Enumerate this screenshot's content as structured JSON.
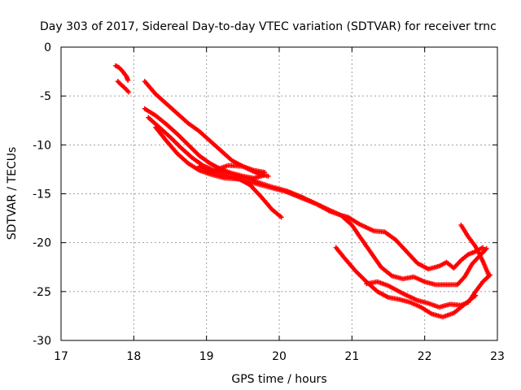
{
  "chart_data": {
    "type": "scatter",
    "title": "Day 303 of 2017, Sidereal Day-to-day VTEC variation (SDTVAR) for receiver trnc",
    "xlabel": "GPS time / hours",
    "ylabel": "SDTVAR / TECUs",
    "xlim": [
      17,
      23
    ],
    "ylim": [
      -30,
      0
    ],
    "xticks": [
      17,
      18,
      19,
      20,
      21,
      22,
      23
    ],
    "yticks": [
      0,
      -5,
      -10,
      -15,
      -20,
      -25,
      -30
    ],
    "grid": true,
    "marker": "plus",
    "color": "#ff0000",
    "series": [
      {
        "name": "s1",
        "values": [
          [
            17.75,
            -1.9
          ],
          [
            17.8,
            -2.1
          ],
          [
            17.85,
            -2.5
          ],
          [
            17.9,
            -3.0
          ],
          [
            17.92,
            -3.4
          ]
        ]
      },
      {
        "name": "s2",
        "values": [
          [
            17.78,
            -3.5
          ],
          [
            17.82,
            -3.8
          ],
          [
            17.88,
            -4.2
          ],
          [
            17.93,
            -4.6
          ]
        ]
      },
      {
        "name": "s3",
        "values": [
          [
            18.15,
            -3.5
          ],
          [
            18.3,
            -4.8
          ],
          [
            18.45,
            -5.8
          ],
          [
            18.6,
            -6.8
          ],
          [
            18.75,
            -7.8
          ],
          [
            18.9,
            -8.6
          ],
          [
            19.05,
            -9.6
          ],
          [
            19.2,
            -10.6
          ],
          [
            19.35,
            -11.6
          ],
          [
            19.5,
            -12.2
          ],
          [
            19.65,
            -12.6
          ],
          [
            19.8,
            -12.8
          ]
        ]
      },
      {
        "name": "s4",
        "values": [
          [
            18.15,
            -6.3
          ],
          [
            18.3,
            -7.0
          ],
          [
            18.45,
            -7.9
          ],
          [
            18.6,
            -8.9
          ],
          [
            18.75,
            -10.0
          ],
          [
            18.9,
            -11.1
          ],
          [
            19.05,
            -11.9
          ],
          [
            19.2,
            -12.5
          ],
          [
            19.35,
            -12.9
          ],
          [
            19.5,
            -13.2
          ],
          [
            19.65,
            -13.4
          ],
          [
            19.8,
            -13.1
          ]
        ]
      },
      {
        "name": "s5",
        "values": [
          [
            18.2,
            -7.2
          ],
          [
            18.35,
            -8.2
          ],
          [
            18.5,
            -9.2
          ],
          [
            18.65,
            -10.3
          ],
          [
            18.8,
            -11.3
          ],
          [
            18.95,
            -12.1
          ],
          [
            19.1,
            -12.6
          ],
          [
            19.3,
            -12.1
          ],
          [
            19.5,
            -12.2
          ],
          [
            19.7,
            -12.9
          ],
          [
            19.85,
            -13.2
          ]
        ]
      },
      {
        "name": "s6",
        "values": [
          [
            18.3,
            -8.2
          ],
          [
            18.45,
            -9.6
          ],
          [
            18.6,
            -10.9
          ],
          [
            18.75,
            -11.9
          ],
          [
            18.9,
            -12.6
          ],
          [
            19.05,
            -13.0
          ],
          [
            19.25,
            -13.4
          ],
          [
            19.45,
            -13.5
          ],
          [
            19.6,
            -14.1
          ],
          [
            19.75,
            -15.3
          ],
          [
            19.9,
            -16.6
          ],
          [
            20.03,
            -17.4
          ]
        ]
      },
      {
        "name": "s7",
        "values": [
          [
            18.9,
            -12.2
          ],
          [
            19.1,
            -12.8
          ],
          [
            19.3,
            -13.2
          ],
          [
            19.5,
            -13.6
          ],
          [
            19.7,
            -14.0
          ],
          [
            19.9,
            -14.4
          ],
          [
            20.1,
            -14.8
          ],
          [
            20.3,
            -15.4
          ],
          [
            20.5,
            -16.0
          ],
          [
            20.7,
            -16.7
          ],
          [
            20.85,
            -17.2
          ],
          [
            21.0,
            -18.2
          ],
          [
            21.1,
            -19.3
          ],
          [
            21.25,
            -20.9
          ],
          [
            21.4,
            -22.5
          ],
          [
            21.55,
            -23.4
          ],
          [
            21.7,
            -23.7
          ],
          [
            21.85,
            -23.5
          ],
          [
            22.0,
            -24.0
          ],
          [
            22.15,
            -24.3
          ],
          [
            22.3,
            -24.3
          ],
          [
            22.45,
            -24.3
          ],
          [
            22.55,
            -23.5
          ],
          [
            22.65,
            -22.2
          ],
          [
            22.75,
            -21.4
          ],
          [
            22.85,
            -20.6
          ]
        ]
      },
      {
        "name": "s8",
        "values": [
          [
            19.1,
            -12.6
          ],
          [
            19.3,
            -12.9
          ],
          [
            19.5,
            -13.3
          ],
          [
            19.7,
            -13.8
          ],
          [
            19.9,
            -14.3
          ],
          [
            20.1,
            -14.7
          ],
          [
            20.3,
            -15.3
          ],
          [
            20.5,
            -16.0
          ],
          [
            20.7,
            -16.8
          ],
          [
            20.85,
            -17.2
          ],
          [
            20.95,
            -17.4
          ],
          [
            21.1,
            -18.1
          ],
          [
            21.3,
            -18.8
          ],
          [
            21.45,
            -18.9
          ],
          [
            21.6,
            -19.7
          ],
          [
            21.75,
            -20.9
          ],
          [
            21.9,
            -22.1
          ],
          [
            22.05,
            -22.7
          ],
          [
            22.2,
            -22.4
          ],
          [
            22.3,
            -22.0
          ],
          [
            22.4,
            -22.6
          ],
          [
            22.5,
            -21.8
          ],
          [
            22.6,
            -21.2
          ],
          [
            22.7,
            -20.9
          ],
          [
            22.8,
            -20.5
          ]
        ]
      },
      {
        "name": "s9",
        "values": [
          [
            21.2,
            -24.2
          ],
          [
            21.35,
            -24.0
          ],
          [
            21.5,
            -24.4
          ],
          [
            21.7,
            -25.2
          ],
          [
            21.9,
            -25.9
          ],
          [
            22.05,
            -26.2
          ],
          [
            22.2,
            -26.6
          ],
          [
            22.35,
            -26.3
          ],
          [
            22.5,
            -26.4
          ],
          [
            22.6,
            -26.1
          ],
          [
            22.7,
            -25.0
          ],
          [
            22.8,
            -24.0
          ],
          [
            22.9,
            -23.3
          ]
        ]
      },
      {
        "name": "s10",
        "values": [
          [
            20.78,
            -20.5
          ],
          [
            20.9,
            -21.6
          ],
          [
            21.05,
            -22.9
          ],
          [
            21.2,
            -24.0
          ],
          [
            21.35,
            -25.0
          ],
          [
            21.5,
            -25.6
          ],
          [
            21.65,
            -25.8
          ],
          [
            21.8,
            -26.1
          ],
          [
            21.95,
            -26.6
          ],
          [
            22.1,
            -27.3
          ],
          [
            22.25,
            -27.6
          ],
          [
            22.4,
            -27.2
          ],
          [
            22.5,
            -26.6
          ],
          [
            22.6,
            -26.0
          ],
          [
            22.7,
            -25.4
          ]
        ]
      },
      {
        "name": "s11",
        "values": [
          [
            22.5,
            -18.2
          ],
          [
            22.6,
            -19.4
          ],
          [
            22.7,
            -20.4
          ],
          [
            22.8,
            -21.9
          ],
          [
            22.88,
            -23.3
          ]
        ]
      }
    ]
  }
}
